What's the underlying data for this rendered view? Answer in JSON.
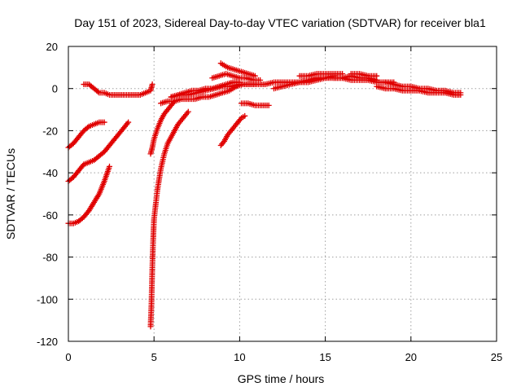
{
  "chart_data": {
    "type": "scatter",
    "title": "Day 151 of 2023, Sidereal Day-to-day VTEC variation (SDTVAR) for receiver bla1",
    "xlabel": "GPS time / hours",
    "ylabel": "SDTVAR / TECUs",
    "xlim": [
      0,
      25
    ],
    "ylim": [
      -120,
      20
    ],
    "xticks": [
      "0",
      "5",
      "10",
      "15",
      "20",
      "25"
    ],
    "yticks": [
      "20",
      "0",
      "-20",
      "-40",
      "-60",
      "-80",
      "-100",
      "-120"
    ],
    "grid": true,
    "marker": "+",
    "marker_color": "#e00000",
    "series": [
      {
        "x": [
          0.0,
          0.3,
          0.6,
          0.9,
          1.2,
          1.5,
          1.8,
          2.1
        ],
        "y": [
          -28,
          -26,
          -23,
          -20,
          -18,
          -17,
          -16,
          -16
        ]
      },
      {
        "x": [
          0.0,
          0.3,
          0.6,
          0.9,
          1.2,
          1.5,
          1.8,
          2.1,
          2.4,
          2.7,
          3.0,
          3.3,
          3.5
        ],
        "y": [
          -44,
          -42,
          -39,
          -36,
          -35,
          -34,
          -32,
          -30,
          -27,
          -24,
          -21,
          -18,
          -16
        ]
      },
      {
        "x": [
          0.0,
          0.3,
          0.6,
          0.9,
          1.2,
          1.5,
          1.8,
          2.1,
          2.4
        ],
        "y": [
          -64,
          -64,
          -63,
          -61,
          -58,
          -54,
          -50,
          -44,
          -37
        ]
      },
      {
        "x": [
          0.9,
          1.2,
          1.5,
          1.8,
          2.1,
          2.4,
          2.7,
          3.0,
          3.3,
          3.6,
          3.9,
          4.2,
          4.5,
          4.8,
          4.9
        ],
        "y": [
          2,
          2,
          0,
          -2,
          -2,
          -3,
          -3,
          -3,
          -3,
          -3,
          -3,
          -3,
          -2,
          -1,
          2
        ]
      },
      {
        "x": [
          4.8,
          4.85,
          4.9,
          4.95,
          5.0,
          5.1,
          5.2,
          5.3,
          5.4,
          5.6,
          5.8,
          6.0,
          6.2,
          6.4,
          6.6,
          6.8,
          7.0
        ],
        "y": [
          -113,
          -102,
          -85,
          -72,
          -62,
          -55,
          -48,
          -43,
          -38,
          -31,
          -26,
          -23,
          -20,
          -17,
          -15,
          -13,
          -11
        ]
      },
      {
        "x": [
          4.8,
          4.9,
          5.0,
          5.2,
          5.4,
          5.6,
          5.8,
          6.0,
          6.2
        ],
        "y": [
          -31,
          -28,
          -24,
          -19,
          -15,
          -12,
          -10,
          -8,
          -6
        ]
      },
      {
        "x": [
          5.4,
          5.8,
          6.2,
          6.6,
          7.0,
          7.4,
          7.8,
          8.2,
          8.6,
          9.0,
          9.4,
          9.8,
          10.2,
          10.6,
          11.0
        ],
        "y": [
          -7,
          -6,
          -6,
          -5,
          -5,
          -5,
          -4,
          -4,
          -3,
          -2,
          -1,
          1,
          2,
          2,
          2
        ]
      },
      {
        "x": [
          6.0,
          6.4,
          6.8,
          7.2,
          7.6,
          8.0,
          8.4,
          8.8,
          9.2,
          9.6,
          10.0
        ],
        "y": [
          -4,
          -3,
          -2,
          -1,
          -1,
          0,
          0,
          1,
          2,
          3,
          3
        ]
      },
      {
        "x": [
          6.0,
          6.5,
          7.0,
          7.5,
          8.0,
          8.5,
          9.0,
          9.5,
          10.0,
          10.5,
          11.0,
          11.5,
          12.0,
          12.5,
          13.0,
          13.5,
          14.0,
          14.5,
          15.0,
          15.5
        ],
        "y": [
          -4,
          -3,
          -3,
          -2,
          -1,
          0,
          1,
          1,
          2,
          2,
          2,
          2,
          3,
          3,
          3,
          3,
          4,
          5,
          5,
          6
        ]
      },
      {
        "x": [
          8.4,
          8.8,
          9.2,
          9.6,
          10.0,
          10.4,
          10.8,
          11.2
        ],
        "y": [
          5,
          6,
          7,
          6,
          5,
          5,
          4,
          4
        ]
      },
      {
        "x": [
          8.9,
          9.3,
          9.7,
          10.1,
          10.5,
          10.9
        ],
        "y": [
          12,
          10,
          9,
          8,
          7,
          6
        ]
      },
      {
        "x": [
          8.9,
          9.1,
          9.3,
          9.5,
          9.7,
          9.9,
          10.1,
          10.3
        ],
        "y": [
          -27,
          -25,
          -22,
          -20,
          -18,
          -16,
          -14,
          -13
        ]
      },
      {
        "x": [
          10.1,
          10.5,
          10.9,
          11.3,
          11.7
        ],
        "y": [
          -7,
          -7,
          -8,
          -8,
          -8
        ]
      },
      {
        "x": [
          12.0,
          12.5,
          13.0,
          13.5,
          14.0,
          14.5,
          15.0,
          15.5,
          16.0,
          16.5,
          17.0,
          17.5,
          18.0
        ],
        "y": [
          0,
          1,
          2,
          3,
          3,
          4,
          5,
          5,
          5,
          6,
          5,
          5,
          4
        ]
      },
      {
        "x": [
          13.5,
          14.0,
          14.5,
          15.0,
          15.5,
          16.0
        ],
        "y": [
          6,
          6,
          7,
          7,
          7,
          7
        ]
      },
      {
        "x": [
          15.5,
          16.0,
          16.5,
          17.0,
          17.5,
          18.0,
          18.5,
          19.0
        ],
        "y": [
          5,
          5,
          4,
          4,
          4,
          3,
          3,
          3
        ]
      },
      {
        "x": [
          16.5,
          17.0,
          17.5,
          18.0
        ],
        "y": [
          7,
          7,
          6,
          6
        ]
      },
      {
        "x": [
          18.0,
          18.5,
          19.0,
          19.5,
          20.0,
          20.5,
          21.0,
          21.5,
          22.0,
          22.5,
          22.9
        ],
        "y": [
          1,
          0,
          0,
          -1,
          -1,
          -1,
          -2,
          -2,
          -2,
          -3,
          -3
        ]
      },
      {
        "x": [
          18.5,
          19.0,
          19.5,
          20.0,
          20.5,
          21.0,
          21.5,
          22.0,
          22.5,
          22.9
        ],
        "y": [
          3,
          2,
          1,
          1,
          0,
          0,
          -1,
          -1,
          -2,
          -2
        ]
      }
    ]
  }
}
